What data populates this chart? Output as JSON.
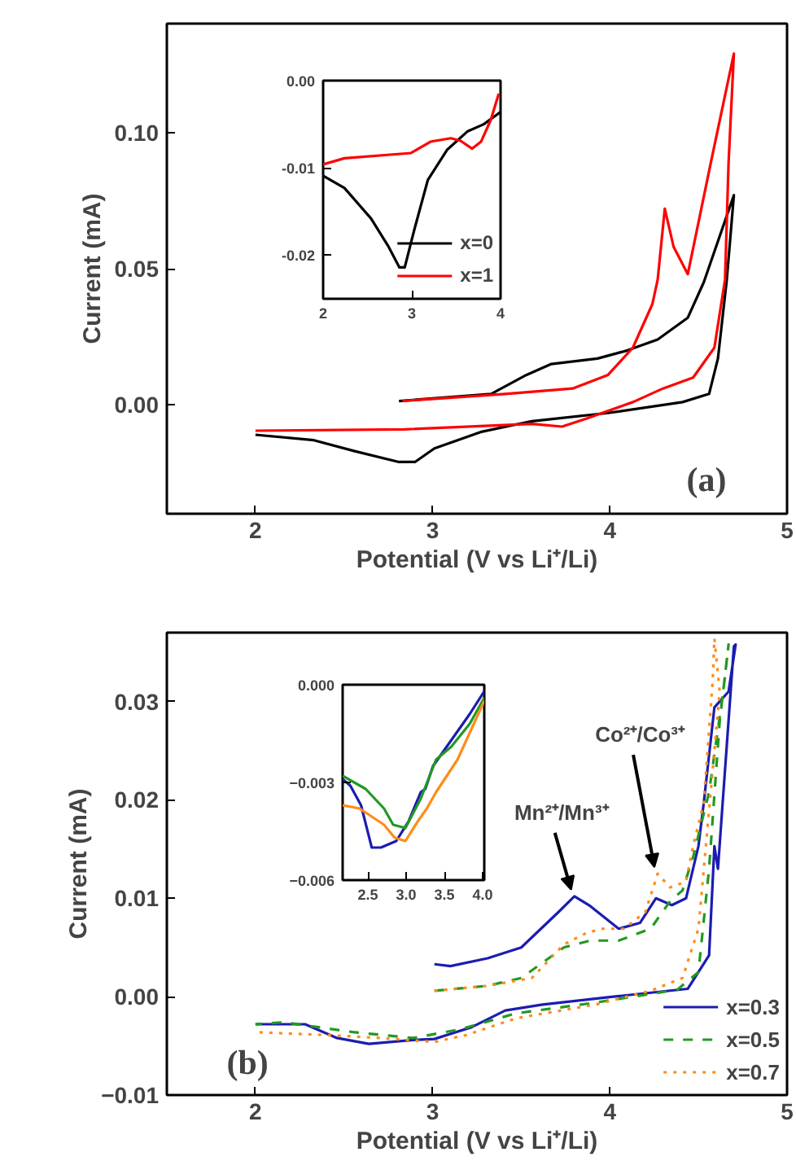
{
  "chart_data": [
    {
      "type": "line",
      "xlabel": "Potential (V vs Li⁺/Li)",
      "ylabel": "Current (mA)",
      "xlim": [
        1.5,
        5
      ],
      "ylim": [
        -0.04,
        0.14
      ],
      "xticks": [
        2,
        3,
        4,
        5
      ],
      "yticks": [
        {
          "value": 0,
          "label": "0.00"
        },
        {
          "value": 0.05,
          "label": "0.05"
        },
        {
          "value": 0.1,
          "label": "0.10"
        }
      ],
      "annotations": [
        "(a)"
      ],
      "series": [
        {
          "color": "#000000",
          "x": [
            2.81,
            3.33,
            3.53,
            3.67,
            3.93,
            4.1,
            4.27,
            4.44,
            4.53,
            4.7,
            4.66,
            4.61,
            4.56,
            4.41,
            3.99,
            3.56,
            3.27,
            3.01,
            2.9,
            2.81,
            2.56,
            2.33,
            2.0
          ],
          "values": [
            0.0014,
            0.004,
            0.011,
            0.015,
            0.017,
            0.02,
            0.024,
            0.032,
            0.045,
            0.077,
            0.046,
            0.017,
            0.004,
            0.001,
            -0.003,
            -0.006,
            -0.01,
            -0.016,
            -0.021,
            -0.021,
            -0.017,
            -0.013,
            -0.011
          ]
        },
        {
          "color": "#ff0000",
          "x": [
            2.83,
            3.41,
            3.79,
            3.99,
            4.13,
            4.24,
            4.27,
            4.31,
            4.36,
            4.44,
            4.57,
            4.7,
            4.67,
            4.65,
            4.59,
            4.47,
            4.3,
            4.13,
            3.87,
            3.73,
            3.56,
            2.84,
            2.0
          ],
          "values": [
            0.0014,
            0.004,
            0.006,
            0.011,
            0.021,
            0.037,
            0.046,
            0.072,
            0.058,
            0.048,
            0.089,
            0.129,
            0.089,
            0.046,
            0.021,
            0.01,
            0.006,
            0.001,
            -0.005,
            -0.008,
            -0.007,
            -0.009,
            -0.0095
          ]
        }
      ]
    },
    {
      "type": "line",
      "xlim": [
        2,
        4
      ],
      "ylim": [
        -0.025,
        0
      ],
      "xticks": [
        2,
        3,
        4
      ],
      "yticks": [
        {
          "value": 0,
          "label": "0.00"
        },
        {
          "value": -0.01,
          "label": "-0.01"
        },
        {
          "value": -0.02,
          "label": "-0.02"
        }
      ],
      "legend": "bottom right",
      "series": [
        {
          "name": "x=0",
          "color": "#000000",
          "x": [
            2.0,
            2.24,
            2.54,
            2.73,
            2.86,
            2.92,
            3.03,
            3.18,
            3.4,
            3.63,
            3.81,
            4.0
          ],
          "values": [
            -0.0109,
            -0.0123,
            -0.0158,
            -0.0189,
            -0.0214,
            -0.0214,
            -0.017,
            -0.0114,
            -0.0079,
            -0.0058,
            -0.005,
            -0.0036
          ]
        },
        {
          "name": "x=1",
          "color": "#ff0000",
          "x": [
            2.0,
            2.24,
            2.99,
            3.21,
            3.44,
            3.55,
            3.68,
            3.78,
            3.89,
            3.98
          ],
          "values": [
            -0.0096,
            -0.0089,
            -0.0083,
            -0.007,
            -0.0066,
            -0.0069,
            -0.0078,
            -0.007,
            -0.0045,
            -0.0015
          ]
        }
      ]
    },
    {
      "type": "line",
      "xlabel": "Potential (V vs Li⁺/Li)",
      "ylabel": "Current (mA)",
      "xlim": [
        1.5,
        5
      ],
      "ylim": [
        -0.01,
        0.037
      ],
      "xticks": [
        2,
        3,
        4,
        5
      ],
      "yticks": [
        -0.01,
        {
          "value": 0,
          "label": "0.00"
        },
        0.01,
        0.02,
        0.03
      ],
      "legend": "bottom right",
      "annotations": [
        {
          "text": "Mn²⁺/Mn³⁺",
          "x": 3.8,
          "y": 0.0102
        },
        {
          "text": "Co²⁺/Co³⁺",
          "x": 4.27,
          "y": 0.0125
        },
        "(b)"
      ],
      "series": [
        {
          "name": "x=0.3",
          "color": "#1c1cb0",
          "line_style": "solid",
          "x": [
            3.01,
            3.1,
            3.31,
            3.5,
            3.71,
            3.8,
            3.89,
            4.05,
            4.17,
            4.26,
            4.35,
            4.43,
            4.5,
            4.53,
            4.59,
            4.67,
            4.71,
            4.7,
            4.61,
            4.59,
            4.56,
            4.44,
            4.02,
            3.62,
            3.41,
            3.22,
            3.01,
            2.89,
            2.64,
            2.46,
            2.28,
            2.0
          ],
          "values": [
            0.0033,
            0.0031,
            0.0039,
            0.005,
            0.0086,
            0.0102,
            0.0092,
            0.0069,
            0.0075,
            0.01,
            0.0093,
            0.01,
            0.0153,
            0.0197,
            0.0294,
            0.031,
            0.0358,
            0.0356,
            0.013,
            0.0153,
            0.0042,
            0.0008,
            0.0,
            -0.0008,
            -0.0014,
            -0.0031,
            -0.0043,
            -0.0044,
            -0.0048,
            -0.0042,
            -0.0028,
            -0.0028
          ]
        },
        {
          "name": "x=0.5",
          "color": "#229922",
          "line_style": "dashed",
          "x": [
            3.01,
            3.31,
            3.5,
            3.74,
            3.89,
            4.05,
            4.23,
            4.34,
            4.41,
            4.47,
            4.56,
            4.64,
            4.67,
            4.62,
            4.56,
            4.5,
            4.38,
            3.92,
            3.47,
            3.16,
            2.89,
            2.55,
            2.16,
            2.0
          ],
          "values": [
            0.0006,
            0.0011,
            0.0019,
            0.005,
            0.0057,
            0.0057,
            0.0069,
            0.0097,
            0.0108,
            0.0142,
            0.0208,
            0.031,
            0.0358,
            0.028,
            0.013,
            0.0025,
            0.0007,
            -0.0006,
            -0.0017,
            -0.0033,
            -0.0042,
            -0.0036,
            -0.0026,
            -0.0028
          ]
        },
        {
          "name": "x=0.7",
          "color": "#ff8c1a",
          "line_style": "dotted",
          "x": [
            3.01,
            3.31,
            3.56,
            3.74,
            3.86,
            3.95,
            4.08,
            4.2,
            4.27,
            4.34,
            4.43,
            4.47,
            4.53,
            4.58,
            4.59,
            4.62,
            4.5,
            4.41,
            4.23,
            3.92,
            3.47,
            3.19,
            3.01,
            2.7,
            2.4,
            2.0
          ],
          "values": [
            0.0006,
            0.0011,
            0.0019,
            0.0053,
            0.0064,
            0.0069,
            0.0069,
            0.0086,
            0.0125,
            0.0111,
            0.0117,
            0.0153,
            0.0197,
            0.032,
            0.0364,
            0.031,
            0.0069,
            0.0019,
            0.0006,
            -0.0008,
            -0.0022,
            -0.0039,
            -0.0046,
            -0.0042,
            -0.0039,
            -0.0036
          ]
        }
      ]
    },
    {
      "type": "line",
      "xlim": [
        2.17,
        4.02
      ],
      "ylim": [
        -0.006,
        0
      ],
      "xticks": [
        2.5,
        {
          "value": 3,
          "label": "3.0"
        },
        3.5,
        {
          "value": 4,
          "label": "4.0"
        }
      ],
      "yticks": [
        {
          "value": 0,
          "label": "0.000"
        },
        -0.003,
        -0.006
      ],
      "series": [
        {
          "color": "#1c1cb0",
          "x": [
            2.17,
            2.27,
            2.41,
            2.55,
            2.67,
            2.87,
            3.03,
            3.19,
            3.25,
            3.35,
            3.59,
            3.83,
            4.02
          ],
          "values": [
            -0.0029,
            -0.0031,
            -0.0037,
            -0.005,
            -0.005,
            -0.0048,
            -0.0042,
            -0.0033,
            -0.0032,
            -0.0025,
            -0.0017,
            -0.0009,
            -0.0002
          ]
        },
        {
          "color": "#229922",
          "x": [
            2.17,
            2.47,
            2.71,
            2.83,
            2.99,
            3.19,
            3.39,
            3.59,
            3.83,
            4.02
          ],
          "values": [
            -0.0028,
            -0.0032,
            -0.0038,
            -0.0043,
            -0.0044,
            -0.0035,
            -0.0023,
            -0.0019,
            -0.0012,
            -0.0004
          ]
        },
        {
          "color": "#ff8c1a",
          "x": [
            2.17,
            2.39,
            2.71,
            2.85,
            2.99,
            3.15,
            3.27,
            3.39,
            3.67,
            4.02
          ],
          "values": [
            -0.0037,
            -0.0038,
            -0.0043,
            -0.0047,
            -0.0048,
            -0.0042,
            -0.0038,
            -0.0033,
            -0.0023,
            -0.0005
          ]
        }
      ]
    }
  ]
}
